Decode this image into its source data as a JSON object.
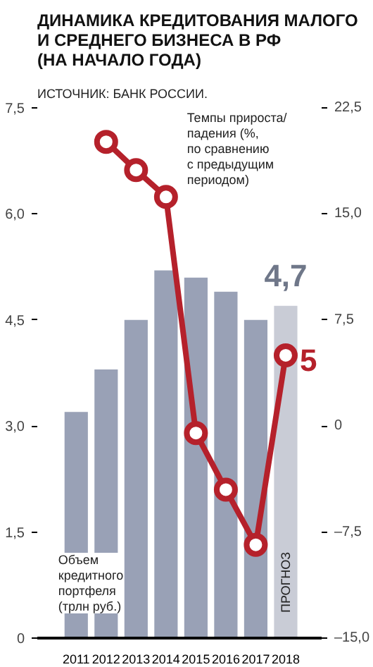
{
  "chart_data": {
    "type": "bar",
    "title": "ДИНАМИКА КРЕДИТОВАНИЯ МАЛОГО\nИ СРЕДНЕГО БИЗНЕСА В РФ\n(НА НАЧАЛО ГОДА)",
    "subtitle": "ИСТОЧНИК: БАНК РОССИИ.",
    "categories": [
      "2011",
      "2012",
      "2013",
      "2014",
      "2015",
      "2016",
      "2017",
      "2018"
    ],
    "series": [
      {
        "name": "Объем\nкредитного\nпортфеля\n(трлн руб.)",
        "color": "#99a1b6",
        "colors": [
          "#99a1b6",
          "#99a1b6",
          "#99a1b6",
          "#99a1b6",
          "#99a1b6",
          "#99a1b6",
          "#99a1b6",
          "#c9ccd6"
        ],
        "values": [
          3.2,
          3.8,
          4.5,
          5.2,
          5.1,
          4.9,
          4.5,
          4.7
        ],
        "value_labels": [
          null,
          null,
          null,
          null,
          null,
          null,
          null,
          "4,7"
        ]
      },
      {
        "name": "Темпы прироста/\nпадения (%,\nпо сравнению\nс предыдущим\nпериодом)",
        "type": "line",
        "axis": "y2",
        "color": "#b5212b",
        "values": [
          null,
          20.1,
          18.1,
          16.2,
          -0.5,
          -4.5,
          -8.4,
          5
        ],
        "value_labels": [
          null,
          null,
          null,
          null,
          null,
          null,
          null,
          "5"
        ]
      }
    ],
    "marker": "circle",
    "ylim": [
      0,
      7.5
    ],
    "yticks": [
      0,
      {
        "value": 1.5,
        "label": "1,5"
      },
      {
        "value": 3,
        "label": "3,0"
      },
      {
        "value": 4.5,
        "label": "4,5"
      },
      {
        "value": 6,
        "label": "6,0"
      },
      {
        "value": 7.5,
        "label": "7,5"
      }
    ],
    "y2lim": [
      -15,
      22.5
    ],
    "y2ticks": [
      {
        "value": -15,
        "label": "–15,0"
      },
      {
        "value": -7.5,
        "label": "–7,5"
      },
      0,
      {
        "value": 7.5,
        "label": "7,5"
      },
      {
        "value": 15,
        "label": "15,0"
      },
      {
        "value": 22.5,
        "label": "22,5"
      }
    ],
    "grid": false,
    "annotations": [
      "ПРОГНОЗ"
    ]
  }
}
